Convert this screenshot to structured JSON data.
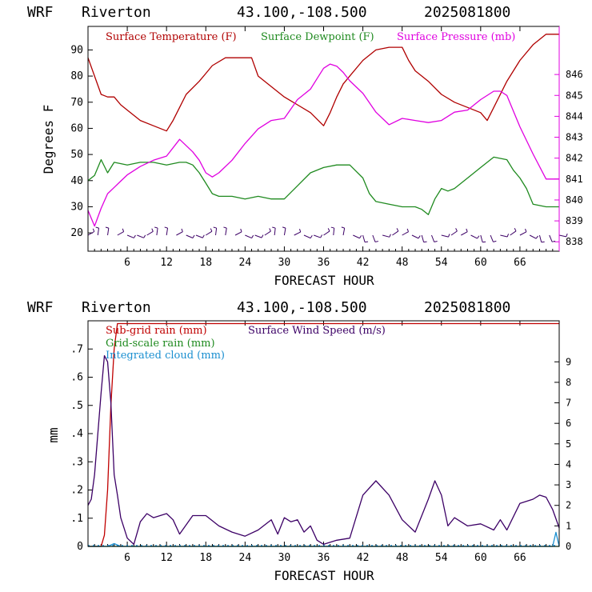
{
  "colors": {
    "temperature": "#b00000",
    "dewpoint": "#1f8a1f",
    "pressure": "#e000e0",
    "magenta_axis": "#e000e0",
    "wind_barbs": "#3c0066",
    "subgrid_rain": "#c00000",
    "gridscale_rain": "#1f8a1f",
    "cloud": "#1a8fd0",
    "wind_speed": "#3c0066"
  },
  "chart_data": [
    {
      "type": "line",
      "header": {
        "model": "WRF",
        "station": "Riverton",
        "coords": "43.100,-108.500",
        "init": "2025081800"
      },
      "xlabel": "FORECAST HOUR",
      "ylabel": "Degrees F",
      "xlim": [
        0,
        72
      ],
      "xticks": [
        "6",
        "12",
        "18",
        "24",
        "30",
        "36",
        "42",
        "48",
        "54",
        "60",
        "66"
      ],
      "ylim": [
        13,
        99
      ],
      "yticks": [
        "20",
        "30",
        "40",
        "50",
        "60",
        "70",
        "80",
        "90"
      ],
      "y2lim": [
        837.55,
        848.3
      ],
      "y2ticks": [
        "838",
        "839",
        "840",
        "841",
        "842",
        "843",
        "844",
        "845",
        "846"
      ],
      "legend": [
        "Surface Temperature (F)",
        "Surface Dewpoint (F)",
        "Surface Pressure (mb)"
      ],
      "series": [
        {
          "name": "Surface Temperature (F)",
          "x": [
            0,
            1,
            2,
            3,
            4,
            5,
            6,
            8,
            10,
            12,
            13,
            14,
            15,
            17,
            19,
            21,
            23,
            25,
            26,
            28,
            30,
            32,
            34,
            36,
            37,
            38,
            39,
            40,
            42,
            44,
            46,
            48,
            49,
            50,
            52,
            54,
            56,
            58,
            60,
            61,
            62,
            64,
            66,
            68,
            70,
            72
          ],
          "y": [
            87,
            80,
            73,
            72,
            72,
            69,
            67,
            63,
            61,
            59,
            63,
            68,
            73,
            78,
            84,
            87,
            87,
            87,
            80,
            76,
            72,
            69,
            66,
            61,
            66,
            72,
            77,
            80,
            86,
            90,
            91,
            91,
            86,
            82,
            78,
            73,
            70,
            68,
            66,
            63,
            68,
            78,
            86,
            92,
            96,
            96
          ]
        },
        {
          "name": "Surface Dewpoint (F)",
          "x": [
            0,
            1,
            2,
            3,
            4,
            6,
            8,
            10,
            12,
            14,
            15,
            16,
            17,
            18,
            19,
            20,
            22,
            24,
            26,
            28,
            30,
            32,
            34,
            36,
            38,
            40,
            42,
            43,
            44,
            46,
            48,
            50,
            51,
            52,
            53,
            54,
            55,
            56,
            58,
            60,
            62,
            64,
            65,
            66,
            67,
            68,
            70,
            72
          ],
          "y": [
            40,
            42,
            48,
            43,
            47,
            46,
            47,
            47,
            46,
            47,
            47,
            46,
            43,
            39,
            35,
            34,
            34,
            33,
            34,
            33,
            33,
            38,
            43,
            45,
            46,
            46,
            41,
            35,
            32,
            31,
            30,
            30,
            29,
            27,
            33,
            37,
            36,
            37,
            41,
            45,
            49,
            48,
            44,
            41,
            37,
            31,
            30,
            30
          ]
        },
        {
          "name": "Surface Pressure (mb)",
          "x": [
            0,
            1,
            2,
            3,
            4,
            5,
            6,
            8,
            10,
            12,
            14,
            16,
            17,
            18,
            19,
            20,
            22,
            24,
            26,
            28,
            30,
            32,
            34,
            35,
            36,
            37,
            38,
            39,
            40,
            42,
            44,
            46,
            48,
            50,
            52,
            54,
            56,
            58,
            60,
            62,
            63,
            64,
            66,
            68,
            70,
            72
          ],
          "y": [
            839.5,
            838.75,
            839.6,
            840.3,
            840.6,
            840.9,
            841.2,
            841.6,
            841.9,
            842.1,
            842.9,
            842.3,
            841.9,
            841.3,
            841.1,
            841.3,
            841.9,
            842.7,
            843.4,
            843.8,
            843.9,
            844.8,
            845.3,
            845.8,
            846.3,
            846.5,
            846.4,
            846.1,
            845.7,
            845.1,
            844.2,
            843.6,
            843.9,
            843.8,
            843.7,
            843.8,
            844.2,
            844.3,
            844.8,
            845.2,
            845.2,
            845.0,
            843.5,
            842.2,
            841.0,
            841.0
          ]
        }
      ]
    },
    {
      "type": "line",
      "header": {
        "model": "WRF",
        "station": "Riverton",
        "coords": "43.100,-108.500",
        "init": "2025081800"
      },
      "xlabel": "FORECAST HOUR",
      "ylabel": "mm",
      "xlim": [
        0,
        72
      ],
      "xticks": [
        "6",
        "12",
        "18",
        "24",
        "30",
        "36",
        "42",
        "48",
        "54",
        "60",
        "66"
      ],
      "ylim": [
        0,
        0.8
      ],
      "yticks": [
        "0",
        ".1",
        ".2",
        ".3",
        ".4",
        ".5",
        ".6",
        ".7"
      ],
      "y2lim": [
        0,
        11
      ],
      "y2ticks": [
        "0",
        "1",
        "2",
        "3",
        "4",
        "5",
        "6",
        "7",
        "8",
        "9"
      ],
      "legend": [
        "Sub-grid rain (mm)",
        "Grid-scale rain (mm)",
        "Integrated cloud (mm)",
        "Surface Wind Speed (m/s)"
      ],
      "series": [
        {
          "name": "Sub-grid rain (mm)",
          "x": [
            0,
            2,
            2.5,
            3,
            3.5,
            4,
            4.5,
            72
          ],
          "y": [
            0,
            0,
            0.04,
            0.2,
            0.5,
            0.7,
            0.79,
            0.79
          ]
        },
        {
          "name": "Grid-scale rain (mm)",
          "x": [
            0,
            72
          ],
          "y": [
            0,
            0
          ]
        },
        {
          "name": "Integrated cloud (mm)",
          "x": [
            0,
            3,
            4,
            5,
            6,
            71,
            71.5,
            72
          ],
          "y": [
            0,
            0,
            0.01,
            0,
            0,
            0,
            0.05,
            0
          ]
        },
        {
          "name": "Surface Wind Speed (m/s)",
          "x": [
            0,
            0.5,
            1,
            2,
            2.5,
            3,
            3.5,
            4,
            4.5,
            5,
            6,
            7,
            8,
            9,
            10,
            12,
            13,
            14,
            16,
            18,
            20,
            22,
            24,
            26,
            28,
            29,
            30,
            31,
            32,
            33,
            34,
            35,
            36,
            38,
            40,
            42,
            44,
            46,
            48,
            50,
            52,
            53,
            54,
            55,
            56,
            58,
            60,
            62,
            63,
            64,
            66,
            68,
            69,
            70,
            71,
            72
          ],
          "y": [
            2.0,
            2.3,
            3.5,
            7.5,
            9.3,
            9.0,
            7.0,
            3.5,
            2.5,
            1.4,
            0.4,
            0.1,
            1.2,
            1.6,
            1.4,
            1.6,
            1.3,
            0.6,
            1.5,
            1.5,
            1.0,
            0.7,
            0.5,
            0.8,
            1.3,
            0.6,
            1.4,
            1.2,
            1.3,
            0.7,
            1.0,
            0.3,
            0.1,
            0.3,
            0.4,
            2.5,
            3.2,
            2.5,
            1.3,
            0.7,
            2.3,
            3.2,
            2.5,
            1.0,
            1.4,
            1.0,
            1.1,
            0.8,
            1.3,
            0.8,
            2.1,
            2.3,
            2.5,
            2.4,
            1.8,
            0.9
          ]
        }
      ]
    }
  ]
}
